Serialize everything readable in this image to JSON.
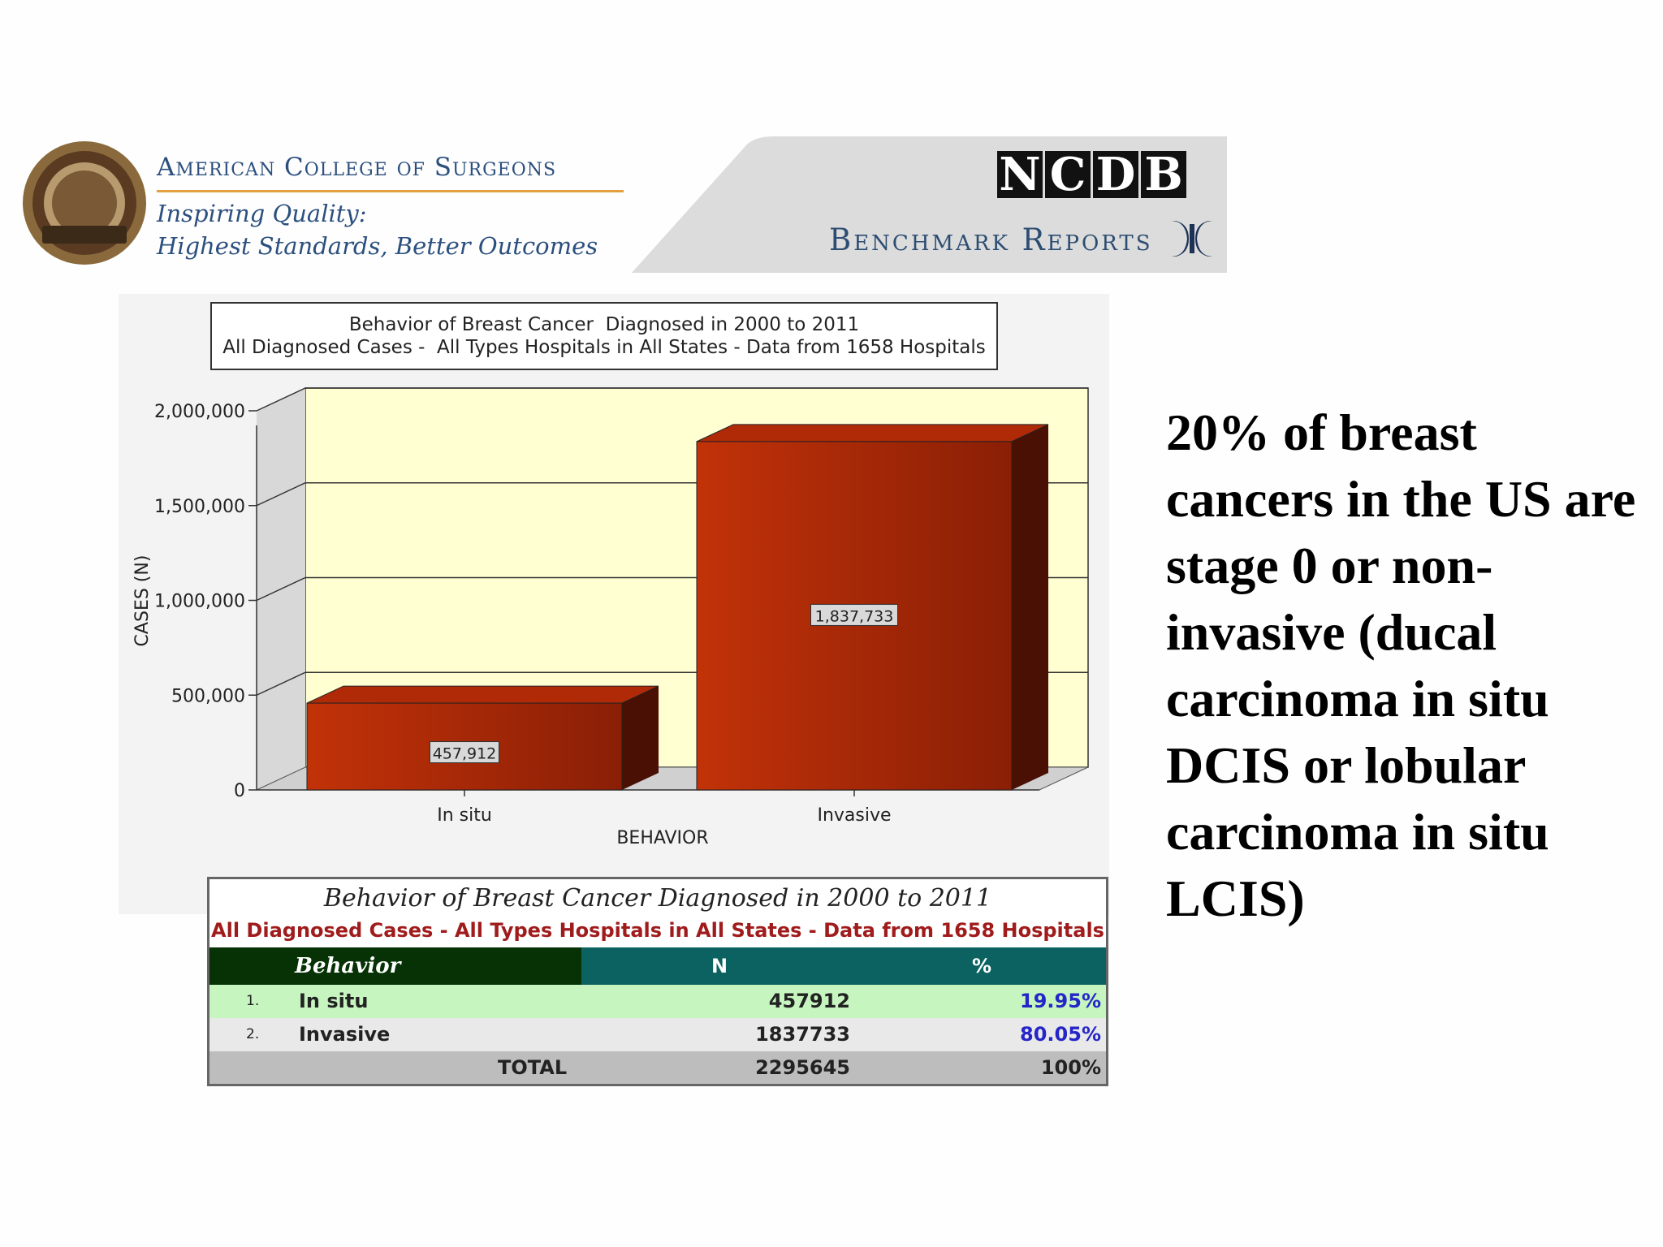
{
  "header": {
    "org_name": "American College of Surgeons",
    "tagline_1": "Inspiring Quality:",
    "tagline_2": "Highest Standards, Better Outcomes",
    "logo_letters": [
      "N",
      "C",
      "D",
      "B"
    ],
    "report_name": "Benchmark Reports"
  },
  "chart_data": {
    "type": "bar",
    "title": "Behavior of Breast Cancer  Diagnosed in 2000 to 2011",
    "subtitle": "All Diagnosed Cases -  All Types Hospitals in All States - Data from 1658 Hospitals",
    "categories": [
      "In situ",
      "Invasive"
    ],
    "values": [
      457912,
      1837733
    ],
    "value_labels": [
      "457,912",
      "1,837,733"
    ],
    "xlabel": "BEHAVIOR",
    "ylabel": "CASES (N)",
    "ylim": [
      0,
      2000000
    ],
    "yticks": [
      0,
      500000,
      1000000,
      1500000,
      2000000
    ],
    "ytick_labels": [
      "0",
      "500,000",
      "1,000,000",
      "1,500,000",
      "2,000,000"
    ],
    "grid": true,
    "legend": "none",
    "bar_color": "#b22a08",
    "plot_bg": "#ffffd2"
  },
  "table": {
    "title": "Behavior of Breast Cancer Diagnosed in 2000 to 2011",
    "subtitle": "All Diagnosed Cases - All Types Hospitals in All States - Data from 1658 Hospitals",
    "headers": [
      "Behavior",
      "N",
      "%"
    ],
    "rows": [
      {
        "index": "1.",
        "label": "In situ",
        "n": "457912",
        "pct": "19.95%"
      },
      {
        "index": "2.",
        "label": "Invasive",
        "n": "1837733",
        "pct": "80.05%"
      }
    ],
    "total": {
      "label": "TOTAL",
      "n": "2295645",
      "pct": "100%"
    }
  },
  "side_text": "20% of breast cancers in the US are stage 0 or non-invasive (ducal carcinoma in situ DCIS  or lobular carcinoma in situ LCIS)"
}
